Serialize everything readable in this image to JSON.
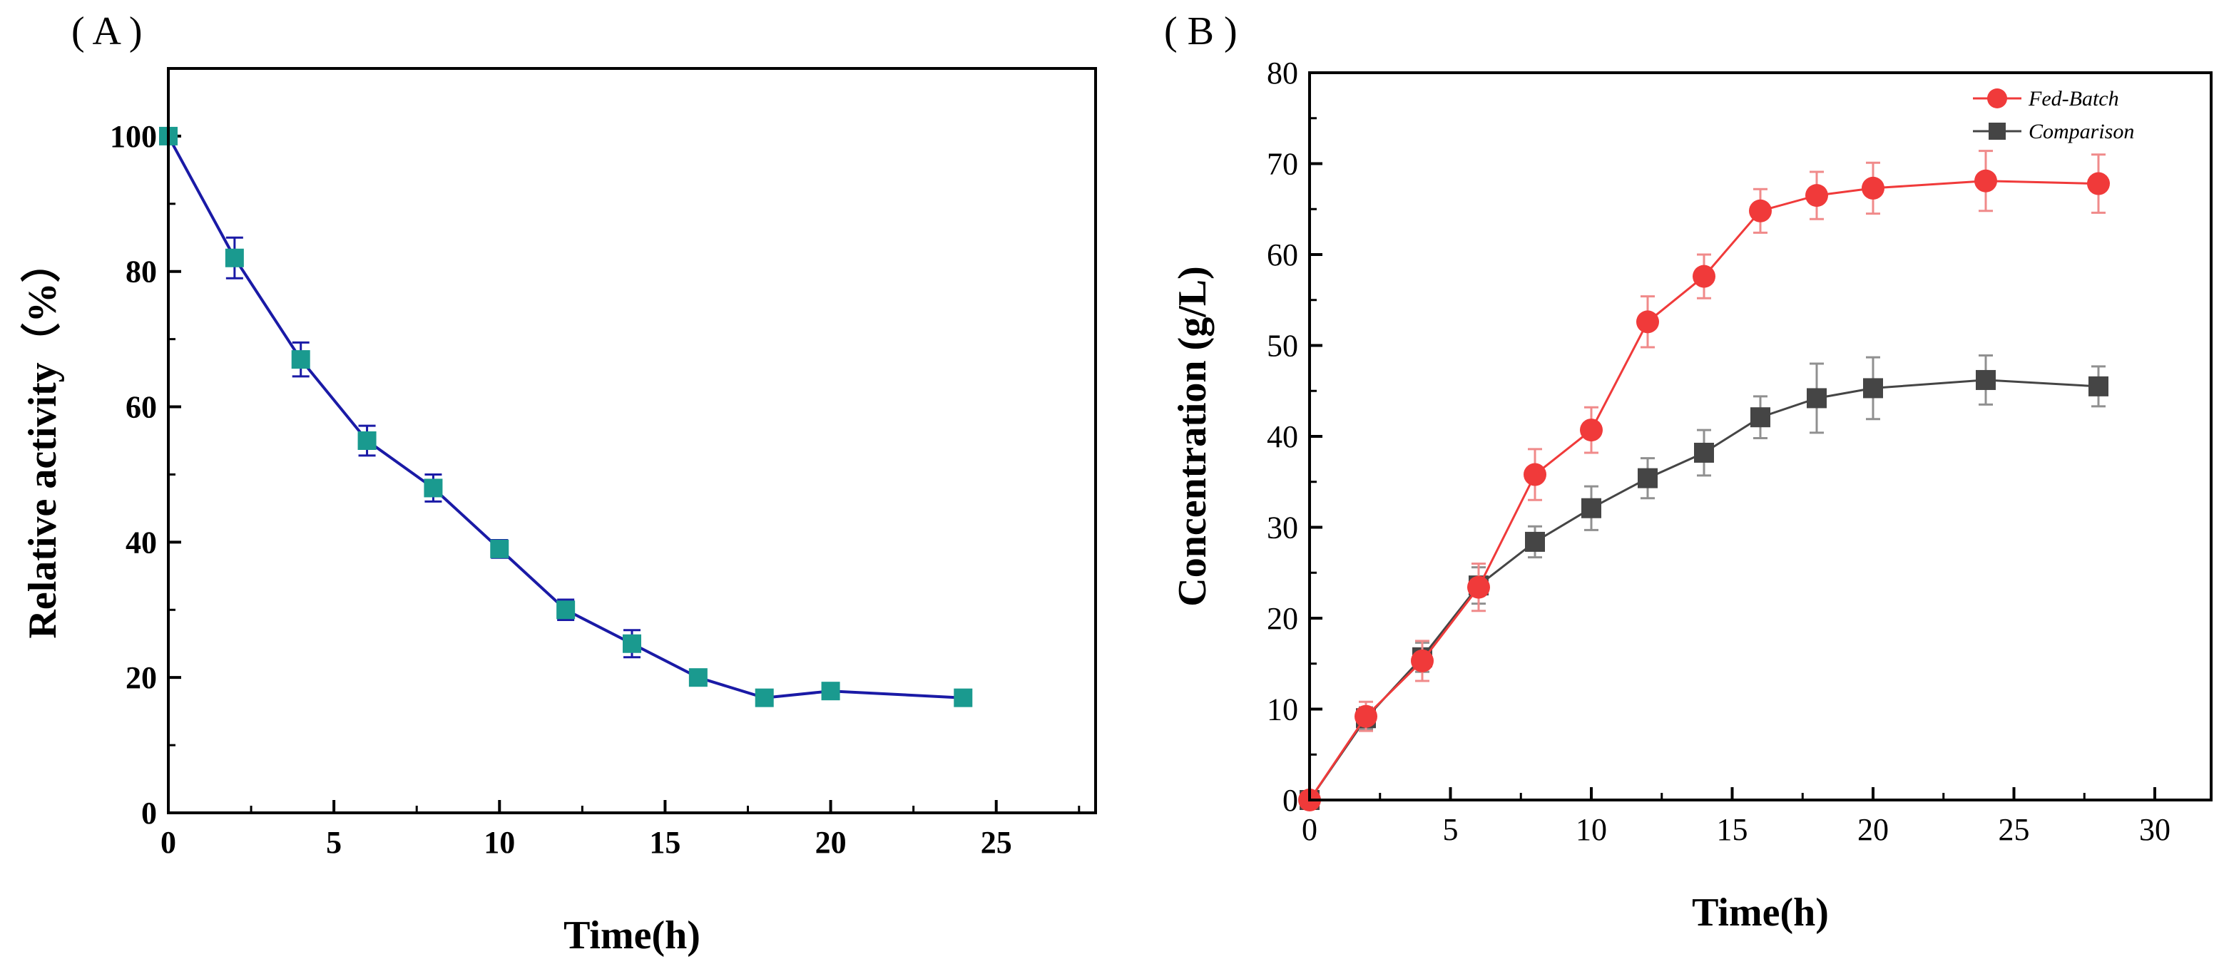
{
  "panels": {
    "a": {
      "label": "( A )"
    },
    "b": {
      "label": "( B )"
    }
  },
  "colors": {
    "a_line": "#1a1aa6",
    "a_marker": "#1a9a8f",
    "fed_batch": "#f03a3a",
    "fed_batch_error": "#f08a8a",
    "comparison": "#454545",
    "comparison_error": "#909090"
  },
  "chart_data": [
    {
      "id": "A",
      "type": "line",
      "title": "",
      "xlabel": "Time(h)",
      "ylabel": "Relative activity（%）",
      "xlim": [
        0,
        28
      ],
      "ylim": [
        0,
        110
      ],
      "xticks": [
        0,
        5,
        10,
        15,
        20,
        25
      ],
      "xtick_labels": [
        "0",
        "5",
        "10",
        "15",
        "20",
        "25"
      ],
      "yticks": [
        0,
        20,
        40,
        60,
        80,
        100
      ],
      "ytick_labels": [
        "0",
        "20",
        "40",
        "60",
        "80",
        "100"
      ],
      "series": [
        {
          "name": "Relative activity",
          "marker": "square",
          "x": [
            0,
            2,
            4,
            6,
            8,
            10,
            12,
            14,
            16,
            18,
            20,
            24
          ],
          "values": [
            100,
            82,
            67,
            55,
            48,
            39,
            30,
            25,
            20,
            17,
            18,
            17
          ],
          "errors": [
            0.6,
            3.0,
            2.5,
            2.2,
            2.0,
            1.3,
            1.5,
            2.0,
            1.0,
            1.0,
            1.0,
            1.0
          ]
        }
      ]
    },
    {
      "id": "B",
      "type": "line",
      "title": "",
      "xlabel": "Time(h)",
      "ylabel": "Concentration (g/L)",
      "xlim": [
        0,
        32
      ],
      "ylim": [
        0,
        80
      ],
      "xticks": [
        0,
        5,
        10,
        15,
        20,
        25,
        30
      ],
      "xtick_labels": [
        "0",
        "5",
        "10",
        "15",
        "20",
        "25",
        "30"
      ],
      "yticks": [
        0,
        10,
        20,
        30,
        40,
        50,
        60,
        70,
        80
      ],
      "ytick_labels": [
        "0",
        "10",
        "20",
        "30",
        "40",
        "50",
        "60",
        "70",
        "80"
      ],
      "legend_position": "top-right",
      "series": [
        {
          "name": "Fed-Batch",
          "marker": "circle",
          "x": [
            0,
            2,
            4,
            6,
            8,
            10,
            12,
            14,
            16,
            18,
            20,
            24,
            28
          ],
          "values": [
            0,
            9.2,
            15.3,
            23.4,
            35.8,
            40.7,
            52.6,
            57.6,
            64.8,
            66.5,
            67.3,
            68.1,
            67.8
          ],
          "errors": [
            0.3,
            1.6,
            2.2,
            2.6,
            2.8,
            2.5,
            2.8,
            2.4,
            2.4,
            2.6,
            2.8,
            3.3,
            3.2
          ]
        },
        {
          "name": "Comparison",
          "marker": "square",
          "x": [
            0,
            2,
            4,
            6,
            8,
            10,
            12,
            14,
            16,
            18,
            20,
            24,
            28
          ],
          "values": [
            0,
            9.0,
            15.7,
            23.6,
            28.4,
            32.1,
            35.4,
            38.2,
            42.1,
            44.2,
            45.3,
            46.2,
            45.5
          ],
          "errors": [
            0.3,
            1.2,
            1.6,
            2.0,
            1.7,
            2.4,
            2.2,
            2.5,
            2.3,
            3.8,
            3.4,
            2.7,
            2.2
          ]
        }
      ]
    }
  ]
}
